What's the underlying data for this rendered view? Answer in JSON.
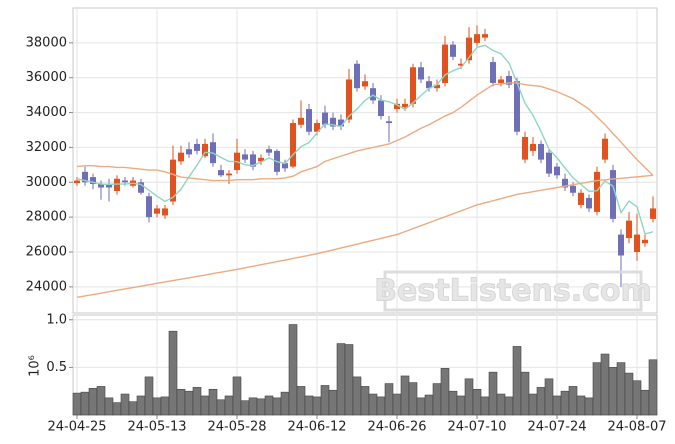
{
  "chart_data": [
    {
      "type": "candlestick",
      "categories": [
        "24-04-25",
        null,
        null,
        null,
        null,
        null,
        null,
        null,
        null,
        null,
        "24-05-13",
        null,
        null,
        null,
        null,
        null,
        null,
        null,
        null,
        null,
        "24-05-28",
        null,
        null,
        null,
        null,
        null,
        null,
        null,
        null,
        null,
        "24-06-12",
        null,
        null,
        null,
        null,
        null,
        null,
        null,
        null,
        null,
        "24-06-26",
        null,
        null,
        null,
        null,
        null,
        null,
        null,
        null,
        null,
        "24-07-10",
        null,
        null,
        null,
        null,
        null,
        null,
        null,
        null,
        null,
        "24-07-24",
        null,
        null,
        null,
        null,
        null,
        null,
        null,
        null,
        null,
        "24-08-07",
        null,
        null
      ],
      "open": [
        29950,
        30600,
        30300,
        29900,
        29900,
        29500,
        30100,
        29800,
        30000,
        29200,
        28200,
        28100,
        28900,
        31200,
        31900,
        32200,
        31500,
        32300,
        30700,
        30400,
        30700,
        31600,
        31600,
        31200,
        31900,
        31800,
        31100,
        30900,
        33300,
        34200,
        32900,
        34000,
        33700,
        33600,
        33600,
        36800,
        35500,
        35400,
        34700,
        33500,
        34200,
        34300,
        34500,
        36600,
        35800,
        35400,
        35700,
        37900,
        36700,
        37000,
        38000,
        38300,
        36900,
        35700,
        36100,
        35800,
        31300,
        31800,
        32200,
        31700,
        30900,
        30200,
        29800,
        28700,
        29100,
        28300,
        31300,
        30700,
        27000,
        26800,
        26000,
        26500,
        27900
      ],
      "high": [
        30300,
        30900,
        30500,
        30100,
        30200,
        30400,
        30300,
        30300,
        30200,
        29400,
        28700,
        28700,
        32100,
        32100,
        32300,
        32500,
        32500,
        32800,
        31000,
        30700,
        32500,
        31900,
        31800,
        31600,
        32100,
        31900,
        31300,
        33600,
        34700,
        34500,
        33600,
        34400,
        34000,
        33900,
        36500,
        37000,
        36200,
        35700,
        35000,
        33800,
        34800,
        34800,
        36800,
        36900,
        36100,
        35900,
        38400,
        38100,
        37100,
        38900,
        39000,
        38800,
        37200,
        36100,
        36400,
        36000,
        32900,
        32600,
        32400,
        31900,
        31100,
        30500,
        30000,
        29600,
        29300,
        30900,
        32800,
        31000,
        27300,
        28300,
        28200,
        27000,
        29200
      ],
      "low": [
        29800,
        29800,
        29600,
        29000,
        28900,
        29300,
        29800,
        29700,
        29300,
        27700,
        28000,
        27900,
        28700,
        31000,
        31400,
        31600,
        31400,
        30900,
        30300,
        29900,
        30500,
        31100,
        30700,
        31000,
        31500,
        30400,
        30600,
        30800,
        33100,
        32700,
        32700,
        33100,
        33000,
        33000,
        33400,
        35200,
        35300,
        34500,
        33600,
        32300,
        34000,
        34100,
        34300,
        35700,
        35200,
        35200,
        35500,
        37000,
        36500,
        36800,
        37800,
        38100,
        35500,
        35500,
        35400,
        32700,
        31100,
        31500,
        31100,
        30300,
        30200,
        29500,
        29200,
        28500,
        28300,
        28100,
        31100,
        27700,
        24000,
        26500,
        25500,
        26300,
        27700
      ],
      "close": [
        30100,
        30000,
        29900,
        29700,
        29700,
        30200,
        30000,
        30100,
        29400,
        28000,
        28500,
        28500,
        31300,
        31700,
        31600,
        31800,
        32200,
        31100,
        30400,
        30500,
        31700,
        31300,
        30900,
        31400,
        31700,
        30600,
        30800,
        33400,
        33700,
        32900,
        33400,
        33300,
        33200,
        33200,
        35900,
        35400,
        35800,
        34700,
        33800,
        33400,
        34500,
        34500,
        36600,
        35900,
        35400,
        35600,
        37900,
        37200,
        36800,
        38300,
        38500,
        38500,
        35700,
        35900,
        35600,
        32900,
        32600,
        32200,
        31300,
        30500,
        30400,
        29700,
        29400,
        29400,
        28500,
        30600,
        32500,
        27900,
        25800,
        27800,
        27000,
        26700,
        28500
      ],
      "up_color": "#e0531f",
      "down_color": "#6f6fb8",
      "series": [
        {
          "color": "#8fd6c2",
          "values": [
            30200,
            30100,
            30000,
            29900,
            29880,
            29900,
            29900,
            29940,
            29880,
            29540,
            29200,
            28900,
            29140,
            29600,
            30320,
            30980,
            31720,
            31680,
            31420,
            31200,
            31180,
            31000,
            30960,
            31160,
            31400,
            31180,
            31080,
            31580,
            32040,
            32280,
            32840,
            33340,
            33300,
            33200,
            33800,
            34200,
            34700,
            35000,
            34720,
            34620,
            34440,
            34180,
            34560,
            34980,
            35380,
            35600,
            36160,
            36400,
            36580,
            37160,
            37740,
            37860,
            37560,
            37380,
            36840,
            35720,
            34540,
            33840,
            32920,
            31900,
            31400,
            30820,
            30260,
            29880,
            29480,
            29520,
            30080,
            29780,
            28260,
            28920,
            28600,
            27040,
            27160
          ]
        },
        {
          "color": "#ebab82",
          "values": [
            30900,
            30950,
            30950,
            30900,
            30900,
            30850,
            30850,
            30800,
            30750,
            30700,
            30700,
            30600,
            30450,
            30300,
            30250,
            30200,
            30150,
            30100,
            30100,
            30100,
            30150,
            30150,
            30150,
            30200,
            30200,
            30200,
            30250,
            30350,
            30600,
            30750,
            30900,
            31200,
            31350,
            31500,
            31650,
            31800,
            31900,
            32000,
            32100,
            32200,
            32400,
            32600,
            32850,
            33100,
            33300,
            33550,
            33800,
            34000,
            34300,
            34650,
            35000,
            35300,
            35600,
            35650,
            35700,
            35700,
            35600,
            35550,
            35500,
            35350,
            35200,
            35000,
            34800,
            34500,
            34200,
            33750,
            33300,
            32800,
            32300,
            31800,
            31300,
            30850,
            30400
          ]
        },
        {
          "color": "#ebab82",
          "values": [
            23400,
            23480,
            23560,
            23640,
            23720,
            23800,
            23880,
            23960,
            24040,
            24120,
            24200,
            24280,
            24360,
            24440,
            24520,
            24600,
            24680,
            24760,
            24840,
            24920,
            25000,
            25090,
            25180,
            25270,
            25360,
            25450,
            25540,
            25630,
            25720,
            25810,
            25900,
            26010,
            26120,
            26230,
            26340,
            26450,
            26560,
            26670,
            26780,
            26890,
            27000,
            27170,
            27340,
            27510,
            27680,
            27850,
            28020,
            28190,
            28360,
            28530,
            28700,
            28820,
            28940,
            29060,
            29180,
            29300,
            29380,
            29460,
            29540,
            29620,
            29700,
            29780,
            29860,
            29940,
            30020,
            30100,
            30140,
            30190,
            30230,
            30270,
            30310,
            30360,
            30400
          ]
        }
      ],
      "ylim": [
        22500,
        40000
      ],
      "yticks": [
        24000,
        26000,
        28000,
        30000,
        32000,
        34000,
        36000,
        38000
      ],
      "grid": true,
      "watermark": "BestListens.com"
    },
    {
      "type": "bar",
      "values": [
        0.23,
        0.24,
        0.28,
        0.3,
        0.18,
        0.13,
        0.22,
        0.14,
        0.2,
        0.4,
        0.18,
        0.19,
        0.88,
        0.27,
        0.25,
        0.29,
        0.2,
        0.27,
        0.16,
        0.2,
        0.4,
        0.15,
        0.18,
        0.17,
        0.2,
        0.18,
        0.24,
        0.95,
        0.3,
        0.2,
        0.19,
        0.31,
        0.26,
        0.75,
        0.74,
        0.4,
        0.3,
        0.22,
        0.19,
        0.33,
        0.22,
        0.41,
        0.34,
        0.18,
        0.21,
        0.33,
        0.49,
        0.25,
        0.2,
        0.38,
        0.27,
        0.19,
        0.45,
        0.22,
        0.19,
        0.72,
        0.45,
        0.22,
        0.29,
        0.38,
        0.2,
        0.25,
        0.3,
        0.2,
        0.18,
        0.55,
        0.64,
        0.5,
        0.55,
        0.44,
        0.36,
        0.26,
        0.58
      ],
      "color": "#767676",
      "ylim": [
        0,
        1.05
      ],
      "yticks": [
        0.5,
        {
          "value": 1,
          "label": "1.0"
        }
      ],
      "ylabel": "10⁶",
      "grid": true
    }
  ]
}
